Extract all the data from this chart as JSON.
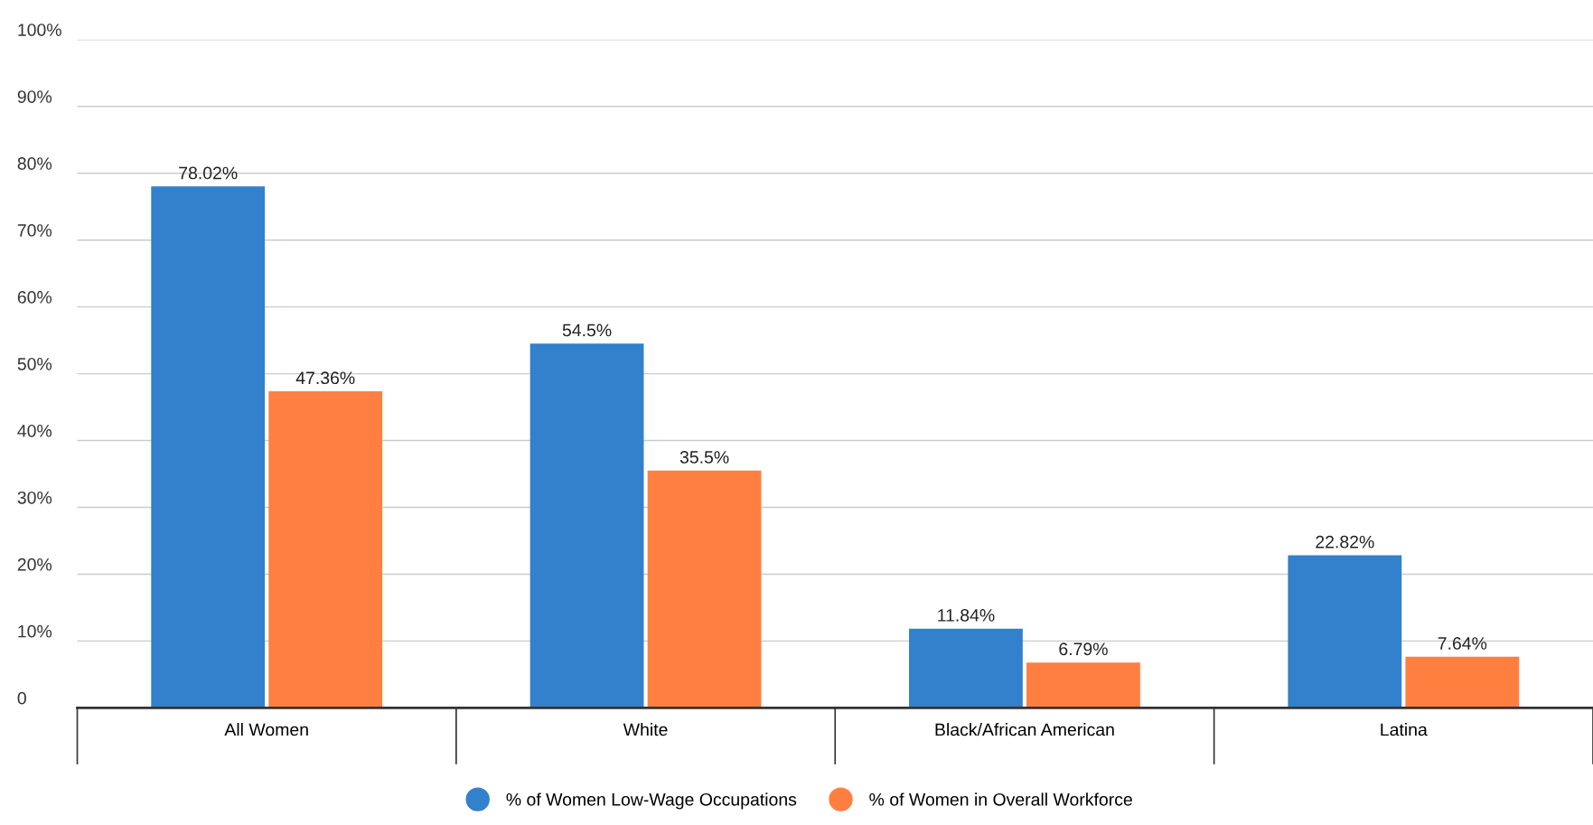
{
  "chart_data": {
    "type": "bar",
    "categories": [
      "All Women",
      "White",
      "Black/African American",
      "Latina"
    ],
    "series": [
      {
        "name": "% of Women Low-Wage Occupations",
        "color": "#3380cc",
        "values": [
          78.02,
          54.5,
          11.84,
          22.82
        ],
        "value_labels": [
          "78.02%",
          "54.5%",
          "11.84%",
          "22.82%"
        ]
      },
      {
        "name": "% of Women in Overall Workforce",
        "color": "#ff7f41",
        "values": [
          47.36,
          35.5,
          6.79,
          7.64
        ],
        "value_labels": [
          "47.36%",
          "35.5%",
          "6.79%",
          "7.64%"
        ]
      }
    ],
    "ylim": [
      0,
      100
    ],
    "yticks": [
      {
        "value": 0,
        "label": "0"
      },
      {
        "value": 10,
        "label": "10%"
      },
      {
        "value": 20,
        "label": "20%"
      },
      {
        "value": 30,
        "label": "30%"
      },
      {
        "value": 40,
        "label": "40%"
      },
      {
        "value": 50,
        "label": "50%"
      },
      {
        "value": 60,
        "label": "60%"
      },
      {
        "value": 70,
        "label": "70%"
      },
      {
        "value": 80,
        "label": "80%"
      },
      {
        "value": 90,
        "label": "90%"
      },
      {
        "value": 100,
        "label": "100%"
      }
    ],
    "grid": "y",
    "legend": "bottom"
  }
}
